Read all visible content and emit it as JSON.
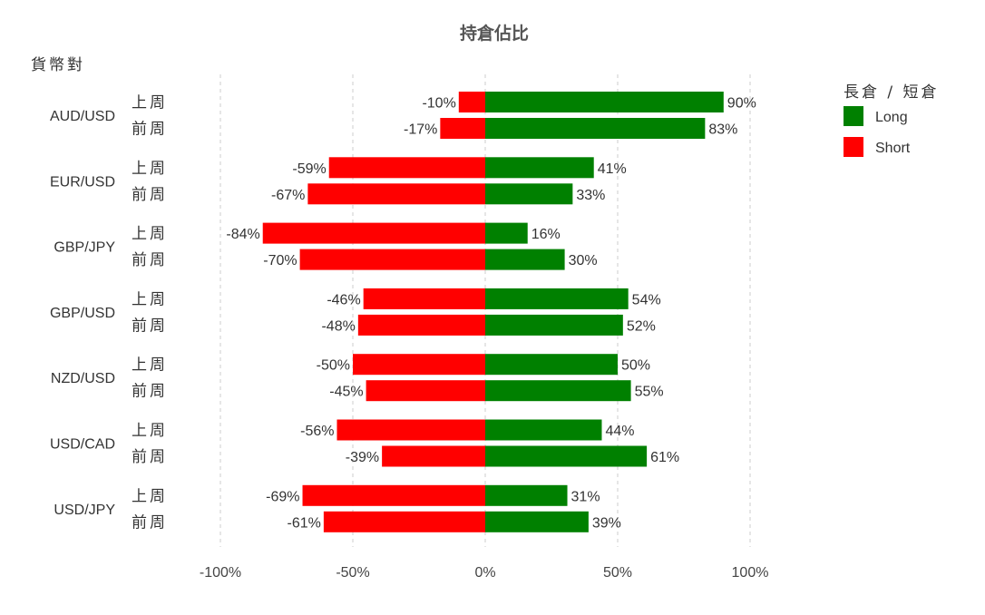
{
  "chart_data": {
    "type": "bar",
    "orientation": "horizontal-diverging",
    "title": "持倉佔比",
    "ylabel": "貨幣對",
    "xlim": [
      -100,
      100
    ],
    "x_ticks": [
      {
        "value": -100,
        "label": "-100%"
      },
      {
        "value": -50,
        "label": "-50%"
      },
      {
        "value": 0,
        "label": "0%"
      },
      {
        "value": 50,
        "label": "50%"
      },
      {
        "value": 100,
        "label": "100%"
      }
    ],
    "grid": true,
    "legend": {
      "title": "長倉 / 短倉",
      "placement": "top-right",
      "items": [
        {
          "name": "Long",
          "color": "#008000"
        },
        {
          "name": "Short",
          "color": "#ff0000"
        }
      ]
    },
    "colors": {
      "long": "#008000",
      "short": "#ff0000"
    },
    "groups": [
      {
        "pair": "AUD/USD",
        "rows": [
          {
            "period": "上周",
            "short": -10,
            "long": 90,
            "short_label": "-10%",
            "long_label": "90%"
          },
          {
            "period": "前周",
            "short": -17,
            "long": 83,
            "short_label": "-17%",
            "long_label": "83%"
          }
        ]
      },
      {
        "pair": "EUR/USD",
        "rows": [
          {
            "period": "上周",
            "short": -59,
            "long": 41,
            "short_label": "-59%",
            "long_label": "41%"
          },
          {
            "period": "前周",
            "short": -67,
            "long": 33,
            "short_label": "-67%",
            "long_label": "33%"
          }
        ]
      },
      {
        "pair": "GBP/JPY",
        "rows": [
          {
            "period": "上周",
            "short": -84,
            "long": 16,
            "short_label": "-84%",
            "long_label": "16%"
          },
          {
            "period": "前周",
            "short": -70,
            "long": 30,
            "short_label": "-70%",
            "long_label": "30%"
          }
        ]
      },
      {
        "pair": "GBP/USD",
        "rows": [
          {
            "period": "上周",
            "short": -46,
            "long": 54,
            "short_label": "-46%",
            "long_label": "54%"
          },
          {
            "period": "前周",
            "short": -48,
            "long": 52,
            "short_label": "-48%",
            "long_label": "52%"
          }
        ]
      },
      {
        "pair": "NZD/USD",
        "rows": [
          {
            "period": "上周",
            "short": -50,
            "long": 50,
            "short_label": "-50%",
            "long_label": "50%"
          },
          {
            "period": "前周",
            "short": -45,
            "long": 55,
            "short_label": "-45%",
            "long_label": "55%"
          }
        ]
      },
      {
        "pair": "USD/CAD",
        "rows": [
          {
            "period": "上周",
            "short": -56,
            "long": 44,
            "short_label": "-56%",
            "long_label": "44%"
          },
          {
            "period": "前周",
            "short": -39,
            "long": 61,
            "short_label": "-39%",
            "long_label": "61%"
          }
        ]
      },
      {
        "pair": "USD/JPY",
        "rows": [
          {
            "period": "上周",
            "short": -69,
            "long": 31,
            "short_label": "-69%",
            "long_label": "31%"
          },
          {
            "period": "前周",
            "short": -61,
            "long": 39,
            "short_label": "-61%",
            "long_label": "39%"
          }
        ]
      }
    ]
  }
}
